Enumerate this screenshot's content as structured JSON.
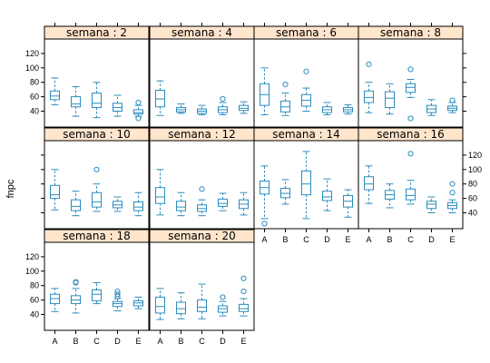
{
  "chart_data": {
    "type": "boxplot",
    "layout": {
      "columns": 4,
      "rows": 3
    },
    "ylabel": "fnpc",
    "categories": [
      "A",
      "B",
      "C",
      "D",
      "E"
    ],
    "ylim": [
      18,
      140
    ],
    "yticks": [
      40,
      60,
      80,
      100,
      120
    ],
    "colors": {
      "box": "#2b8cbe",
      "strip": "#ffe5cc",
      "frame": "#000000"
    },
    "panels": [
      {
        "label": "semana : 2",
        "boxes": [
          {
            "q": [
              49,
              56,
              61,
              68,
              86
            ],
            "out": []
          },
          {
            "q": [
              33,
              46,
              50,
              60,
              74
            ],
            "out": []
          },
          {
            "q": [
              31,
              45,
              51,
              65,
              80
            ],
            "out": []
          },
          {
            "q": [
              33,
              40,
              45,
              51,
              62
            ],
            "out": []
          },
          {
            "q": [
              33,
              36,
              38,
              42,
              48
            ],
            "out": [
              52,
              30
            ]
          }
        ]
      },
      {
        "label": "semana : 4",
        "boxes": [
          {
            "q": [
              34,
              46,
              57,
              69,
              82
            ],
            "out": []
          },
          {
            "q": [
              37,
              39,
              42,
              45,
              50
            ],
            "out": []
          },
          {
            "q": [
              35,
              37,
              40,
              43,
              48
            ],
            "out": []
          },
          {
            "q": [
              35,
              38,
              42,
              46,
              52
            ],
            "out": [
              57
            ]
          },
          {
            "q": [
              37,
              41,
              44,
              48,
              53
            ],
            "out": []
          }
        ]
      },
      {
        "label": "semana : 6",
        "boxes": [
          {
            "q": [
              35,
              48,
              63,
              78,
              100
            ],
            "out": []
          },
          {
            "q": [
              34,
              39,
              46,
              54,
              65
            ],
            "out": [
              77
            ]
          },
          {
            "q": [
              40,
              47,
              55,
              63,
              72
            ],
            "out": [
              95
            ]
          },
          {
            "q": [
              35,
              38,
              42,
              46,
              52
            ],
            "out": []
          },
          {
            "q": [
              36,
              39,
              42,
              45,
              49
            ],
            "out": []
          }
        ]
      },
      {
        "label": "semana : 8",
        "boxes": [
          {
            "q": [
              38,
              52,
              59,
              68,
              80
            ],
            "out": [
              105
            ]
          },
          {
            "q": [
              36,
              45,
              58,
              67,
              78
            ],
            "out": []
          },
          {
            "q": [
              59,
              66,
              73,
              78,
              84
            ],
            "out": [
              98,
              30
            ]
          },
          {
            "q": [
              34,
              38,
              43,
              48,
              56
            ],
            "out": []
          },
          {
            "q": [
              38,
              41,
              44,
              47,
              52
            ],
            "out": [
              55
            ]
          }
        ]
      },
      {
        "label": "semana : 10",
        "boxes": [
          {
            "q": [
              44,
              60,
              65,
              78,
              100
            ],
            "out": []
          },
          {
            "q": [
              36,
              43,
              49,
              58,
              70
            ],
            "out": []
          },
          {
            "q": [
              42,
              48,
              55,
              68,
              80
            ],
            "out": [
              100
            ]
          },
          {
            "q": [
              42,
              47,
              51,
              56,
              62
            ],
            "out": []
          },
          {
            "q": [
              36,
              43,
              48,
              55,
              68
            ],
            "out": []
          }
        ]
      },
      {
        "label": "semana : 12",
        "boxes": [
          {
            "q": [
              37,
              53,
              62,
              75,
              100
            ],
            "out": []
          },
          {
            "q": [
              36,
              43,
              48,
              56,
              68
            ],
            "out": []
          },
          {
            "q": [
              36,
              42,
              46,
              51,
              58
            ],
            "out": [
              73
            ]
          },
          {
            "q": [
              43,
              49,
              53,
              59,
              67
            ],
            "out": []
          },
          {
            "q": [
              37,
              46,
              52,
              58,
              68
            ],
            "out": []
          }
        ]
      },
      {
        "label": "semana : 14",
        "boxes": [
          {
            "q": [
              32,
              66,
              75,
              84,
              105
            ],
            "out": [
              25
            ]
          },
          {
            "q": [
              52,
              61,
              67,
              74,
              86
            ],
            "out": []
          },
          {
            "q": [
              32,
              65,
              80,
              98,
              125
            ],
            "out": []
          },
          {
            "q": [
              43,
              57,
              62,
              70,
              87
            ],
            "out": []
          },
          {
            "q": [
              34,
              48,
              56,
              64,
              72
            ],
            "out": []
          }
        ]
      },
      {
        "label": "semana : 16",
        "boxes": [
          {
            "q": [
              53,
              72,
              80,
              90,
              105
            ],
            "out": []
          },
          {
            "q": [
              47,
              59,
              65,
              71,
              80
            ],
            "out": []
          },
          {
            "q": [
              52,
              58,
              64,
              73,
              85
            ],
            "out": [
              122
            ]
          },
          {
            "q": [
              40,
              46,
              52,
              56,
              62
            ],
            "out": []
          },
          {
            "q": [
              40,
              46,
              50,
              54,
              58
            ],
            "out": [
              80,
              68
            ]
          }
        ]
      },
      {
        "label": "semana : 18",
        "boxes": [
          {
            "q": [
              44,
              55,
              62,
              68,
              76
            ],
            "out": []
          },
          {
            "q": [
              42,
              55,
              60,
              66,
              76
            ],
            "out": [
              85,
              84
            ]
          },
          {
            "q": [
              55,
              59,
              68,
              74,
              84
            ],
            "out": []
          },
          {
            "q": [
              45,
              51,
              55,
              58,
              62
            ],
            "out": [
              72,
              68,
              65
            ]
          },
          {
            "q": [
              48,
              52,
              56,
              59,
              64
            ],
            "out": []
          }
        ]
      },
      {
        "label": "semana : 20",
        "boxes": [
          {
            "q": [
              33,
              42,
              51,
              64,
              76
            ],
            "out": []
          },
          {
            "q": [
              34,
              41,
              48,
              57,
              70
            ],
            "out": []
          },
          {
            "q": [
              34,
              44,
              50,
              60,
              82
            ],
            "out": []
          },
          {
            "q": [
              38,
              43,
              48,
              52,
              58
            ],
            "out": [
              64
            ]
          },
          {
            "q": [
              38,
              44,
              48,
              54,
              62
            ],
            "out": [
              90,
              72
            ]
          }
        ]
      }
    ]
  }
}
